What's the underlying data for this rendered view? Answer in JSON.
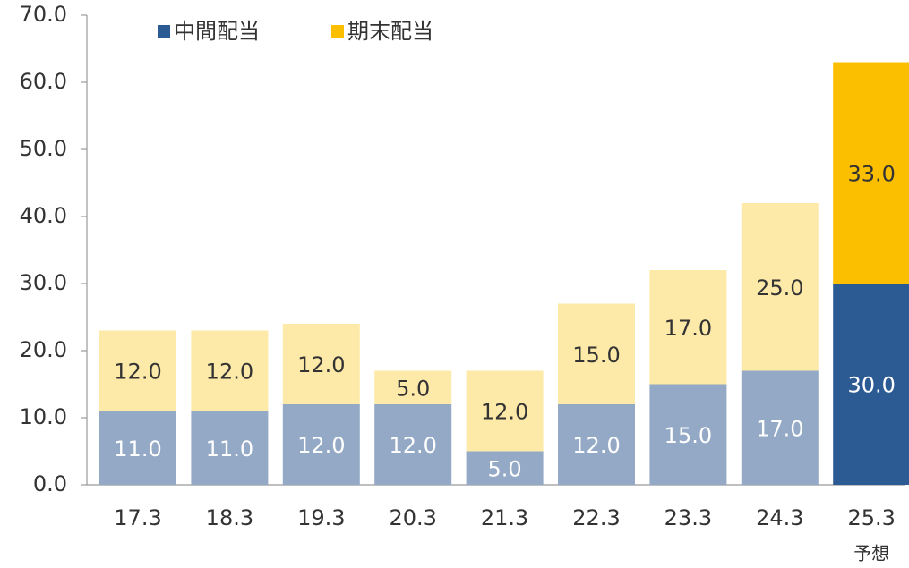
{
  "chart_data": {
    "type": "stacked_bar",
    "categories": [
      "17.3",
      "18.3",
      "19.3",
      "20.3",
      "21.3",
      "22.3",
      "23.3",
      "24.3",
      "25.3"
    ],
    "category_notes": [
      null,
      null,
      null,
      null,
      null,
      null,
      null,
      null,
      "予想"
    ],
    "series": [
      {
        "name": "中間配当",
        "color": "#2c5b94",
        "colors": [
          "#93a9c6",
          "#93a9c6",
          "#93a9c6",
          "#93a9c6",
          "#93a9c6",
          "#93a9c6",
          "#93a9c6",
          "#93a9c6",
          "#2c5b94"
        ],
        "values": [
          11,
          11,
          12,
          12,
          5,
          12,
          15,
          17,
          30
        ],
        "value_labels": [
          "11.0",
          "11.0",
          "12.0",
          "12.0",
          "5.0",
          "12.0",
          "15.0",
          "17.0",
          "30.0"
        ]
      },
      {
        "name": "期末配当",
        "color": "#fbbf00",
        "colors": [
          "#fde9a8",
          "#fde9a8",
          "#fde9a8",
          "#fde9a8",
          "#fde9a8",
          "#fde9a8",
          "#fde9a8",
          "#fde9a8",
          "#fbbf00"
        ],
        "values": [
          12,
          12,
          12,
          5,
          12,
          15,
          17,
          25,
          33
        ],
        "value_labels": [
          "12.0",
          "12.0",
          "12.0",
          "5.0",
          "12.0",
          "15.0",
          "17.0",
          "25.0",
          "33.0"
        ]
      }
    ],
    "ylim": [
      0,
      70
    ],
    "yticks": [
      {
        "value": 0,
        "label": "0.0"
      },
      {
        "value": 10,
        "label": "10.0"
      },
      {
        "value": 20,
        "label": "20.0"
      },
      {
        "value": 30,
        "label": "30.0"
      },
      {
        "value": 40,
        "label": "40.0"
      },
      {
        "value": 50,
        "label": "50.0"
      },
      {
        "value": 60,
        "label": "60.0"
      },
      {
        "value": 70,
        "label": "70.0"
      }
    ],
    "legend": "top"
  }
}
